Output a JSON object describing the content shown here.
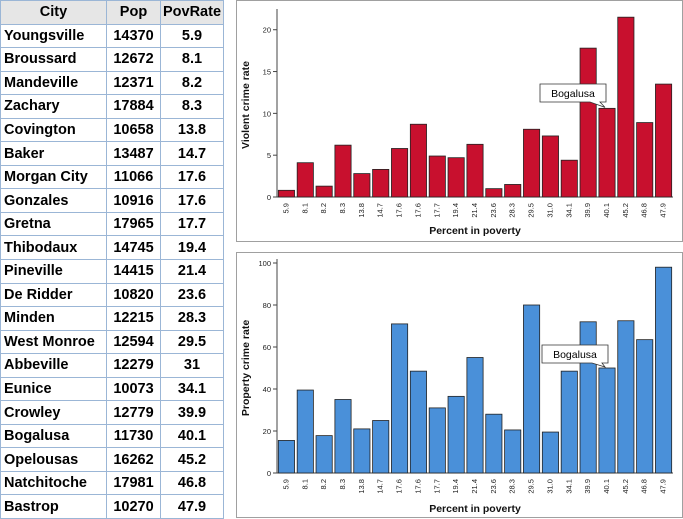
{
  "table": {
    "headers": [
      "City",
      "Pop",
      "PovRate"
    ],
    "rows": [
      [
        "Youngsville",
        "14370",
        "5.9"
      ],
      [
        "Broussard",
        "12672",
        "8.1"
      ],
      [
        "Mandeville",
        "12371",
        "8.2"
      ],
      [
        "Zachary",
        "17884",
        "8.3"
      ],
      [
        "Covington",
        "10658",
        "13.8"
      ],
      [
        "Baker",
        "13487",
        "14.7"
      ],
      [
        "Morgan City",
        "11066",
        "17.6"
      ],
      [
        "Gonzales",
        "10916",
        "17.6"
      ],
      [
        "Gretna",
        "17965",
        "17.7"
      ],
      [
        "Thibodaux",
        "14745",
        "19.4"
      ],
      [
        "Pineville",
        "14415",
        "21.4"
      ],
      [
        "De Ridder",
        "10820",
        "23.6"
      ],
      [
        "Minden",
        "12215",
        "28.3"
      ],
      [
        "West Monroe",
        "12594",
        "29.5"
      ],
      [
        "Abbeville",
        "12279",
        "31"
      ],
      [
        "Eunice",
        "10073",
        "34.1"
      ],
      [
        "Crowley",
        "12779",
        "39.9"
      ],
      [
        "Bogalusa",
        "11730",
        "40.1"
      ],
      [
        "Opelousas",
        "16262",
        "45.2"
      ],
      [
        "Natchitoche",
        "17981",
        "46.8"
      ],
      [
        "Bastrop",
        "10270",
        "47.9"
      ]
    ]
  },
  "chart_data": [
    {
      "type": "bar",
      "title": "",
      "xlabel": "Percent in poverty",
      "ylabel": "Violent crime rate",
      "categories": [
        "5.9",
        "8.1",
        "8.2",
        "8.3",
        "13.8",
        "14.7",
        "17.6",
        "17.6",
        "17.7",
        "19.4",
        "21.4",
        "23.6",
        "28.3",
        "29.5",
        "31.0",
        "34.1",
        "39.9",
        "40.1",
        "45.2",
        "46.8",
        "47.9"
      ],
      "values": [
        0.8,
        4.1,
        1.3,
        6.2,
        2.8,
        3.3,
        5.8,
        8.7,
        4.9,
        4.7,
        6.3,
        1.0,
        1.5,
        8.1,
        7.3,
        4.4,
        17.8,
        10.6,
        21.5,
        8.9,
        13.5
      ],
      "ylim": [
        0,
        22
      ],
      "yticks": [
        0,
        5,
        10,
        15,
        20
      ],
      "color": "#c8102e",
      "annotation": {
        "text": "Bogalusa",
        "category_index": 17
      }
    },
    {
      "type": "bar",
      "title": "",
      "xlabel": "Percent in poverty",
      "ylabel": "Property crime rate",
      "categories": [
        "5.9",
        "8.1",
        "8.2",
        "8.3",
        "13.8",
        "14.7",
        "17.6",
        "17.6",
        "17.7",
        "19.4",
        "21.4",
        "23.6",
        "28.3",
        "29.5",
        "31.0",
        "34.1",
        "39.9",
        "40.1",
        "45.2",
        "46.8",
        "47.9"
      ],
      "values": [
        15.5,
        39.5,
        17.8,
        35.0,
        21.0,
        25.0,
        71.0,
        48.5,
        31.0,
        36.5,
        55.0,
        28.0,
        20.5,
        80.0,
        19.5,
        48.5,
        72.0,
        50.0,
        72.5,
        63.5,
        98.0
      ],
      "ylim": [
        0,
        100
      ],
      "yticks": [
        0,
        20,
        40,
        60,
        80,
        100
      ],
      "color": "#4a90d9",
      "annotation": {
        "text": "Bogalusa",
        "category_index": 17
      }
    }
  ]
}
